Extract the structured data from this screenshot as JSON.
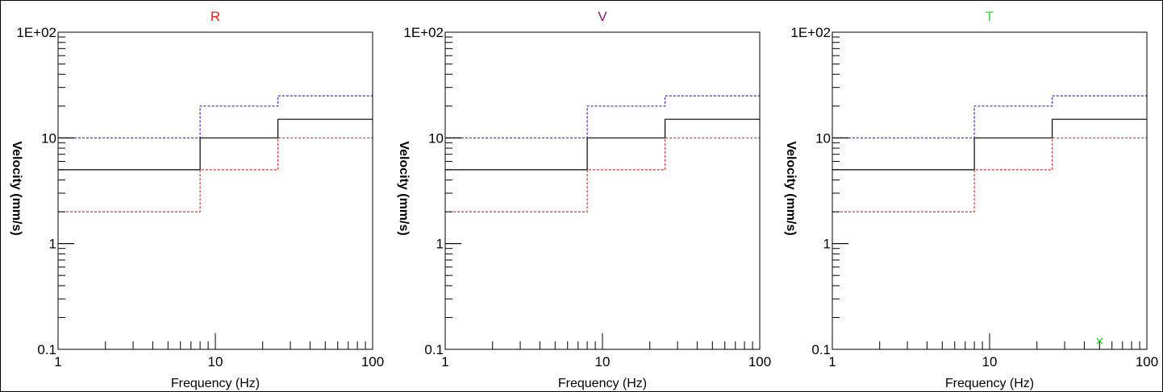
{
  "chart_data": [
    {
      "type": "line",
      "title": "R",
      "title_color": "#e8201a",
      "xlabel": "Frequency (Hz)",
      "ylabel": "Velocity (mm/s)",
      "x_scale": "log",
      "y_scale": "log",
      "xlim": [
        1,
        100
      ],
      "ylim": [
        0.1,
        100
      ],
      "x_ticks": [
        "1",
        "10",
        "100"
      ],
      "y_ticks": [
        "0.1",
        "1",
        "10",
        "1E+02"
      ],
      "series": [
        {
          "color": "#000000",
          "style": "solid",
          "x": [
            1,
            8,
            8,
            25,
            25,
            100
          ],
          "y": [
            5,
            5,
            10,
            10,
            15,
            15
          ]
        },
        {
          "color": "#2a2ad0",
          "style": "dashed",
          "x": [
            1,
            8,
            8,
            25,
            25,
            100
          ],
          "y": [
            10,
            10,
            20,
            20,
            25,
            25
          ]
        },
        {
          "color": "#d03030",
          "style": "dashed",
          "x": [
            1,
            8,
            8,
            25,
            25,
            100
          ],
          "y": [
            2,
            2,
            5,
            5,
            10,
            10
          ]
        }
      ],
      "markers": []
    },
    {
      "type": "line",
      "title": "V",
      "title_color": "#8b1a6b",
      "xlabel": "Frequency (Hz)",
      "ylabel": "Velocity (mm/s)",
      "x_scale": "log",
      "y_scale": "log",
      "xlim": [
        1,
        100
      ],
      "ylim": [
        0.1,
        100
      ],
      "x_ticks": [
        "1",
        "10",
        "100"
      ],
      "y_ticks": [
        "0.1",
        "1",
        "10",
        "1E+02"
      ],
      "series": [
        {
          "color": "#000000",
          "style": "solid",
          "x": [
            1,
            8,
            8,
            25,
            25,
            100
          ],
          "y": [
            5,
            5,
            10,
            10,
            15,
            15
          ]
        },
        {
          "color": "#2a2ad0",
          "style": "dashed",
          "x": [
            1,
            8,
            8,
            25,
            25,
            100
          ],
          "y": [
            10,
            10,
            20,
            20,
            25,
            25
          ]
        },
        {
          "color": "#d03030",
          "style": "dashed",
          "x": [
            1,
            8,
            8,
            25,
            25,
            100
          ],
          "y": [
            2,
            2,
            5,
            5,
            10,
            10
          ]
        }
      ],
      "markers": []
    },
    {
      "type": "line",
      "title": "T",
      "title_color": "#3ad63a",
      "xlabel": "Frequency (Hz)",
      "ylabel": "Velocity (mm/s)",
      "x_scale": "log",
      "y_scale": "log",
      "xlim": [
        1,
        100
      ],
      "ylim": [
        0.1,
        100
      ],
      "x_ticks": [
        "1",
        "10",
        "100"
      ],
      "y_ticks": [
        "0.1",
        "1",
        "10",
        "1E+02"
      ],
      "series": [
        {
          "color": "#000000",
          "style": "solid",
          "x": [
            1,
            8,
            8,
            25,
            25,
            100
          ],
          "y": [
            5,
            5,
            10,
            10,
            15,
            15
          ]
        },
        {
          "color": "#2a2ad0",
          "style": "dashed",
          "x": [
            1,
            8,
            8,
            25,
            25,
            100
          ],
          "y": [
            10,
            10,
            20,
            20,
            25,
            25
          ]
        },
        {
          "color": "#d03030",
          "style": "dashed",
          "x": [
            1,
            8,
            8,
            25,
            25,
            100
          ],
          "y": [
            2,
            2,
            5,
            5,
            10,
            10
          ]
        }
      ],
      "markers": [
        {
          "x": 50,
          "y": 0.12,
          "color": "#3ad63a",
          "shape": "x"
        }
      ]
    }
  ]
}
